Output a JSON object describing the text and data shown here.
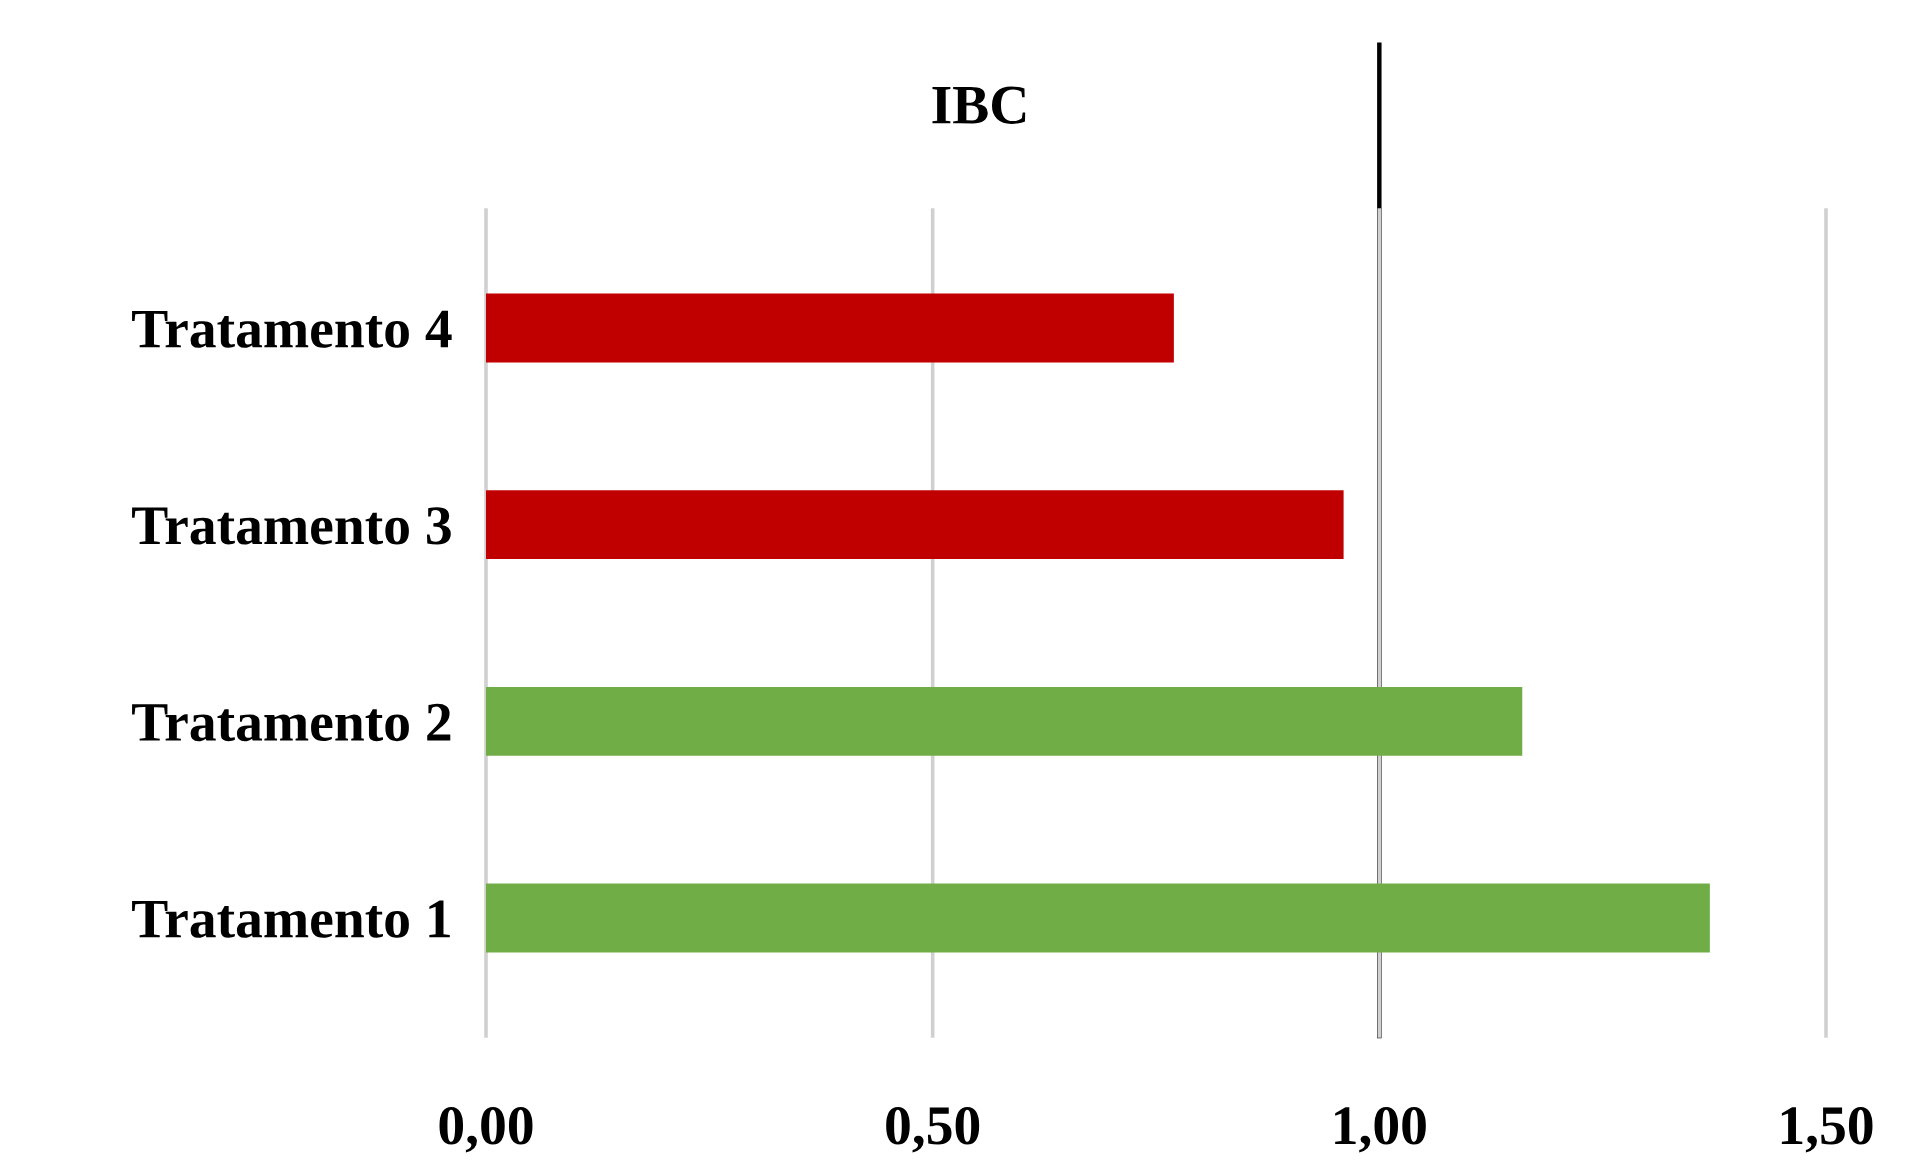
{
  "chart_data": {
    "type": "bar",
    "orientation": "horizontal",
    "title": "IBC",
    "categories": [
      "Tratamento 4",
      "Tratamento 3",
      "Tratamento 2",
      "Tratamento 1"
    ],
    "values": [
      0.77,
      0.96,
      1.16,
      1.37
    ],
    "colors": [
      "#c00000",
      "#c00000",
      "#70ad47",
      "#70ad47"
    ],
    "xlim": [
      0,
      1.5
    ],
    "xticks": [
      {
        "value": 0,
        "label": "0,00"
      },
      {
        "value": 0.5,
        "label": "0,50"
      },
      {
        "value": 1.0,
        "label": "1,00"
      },
      {
        "value": 1.5,
        "label": "1,50"
      }
    ],
    "grid": "x",
    "legend": false,
    "ref_lines": [
      {
        "axis": "x",
        "value": 1.0,
        "label": null,
        "color": "#000000",
        "line_style": "solid"
      }
    ]
  }
}
